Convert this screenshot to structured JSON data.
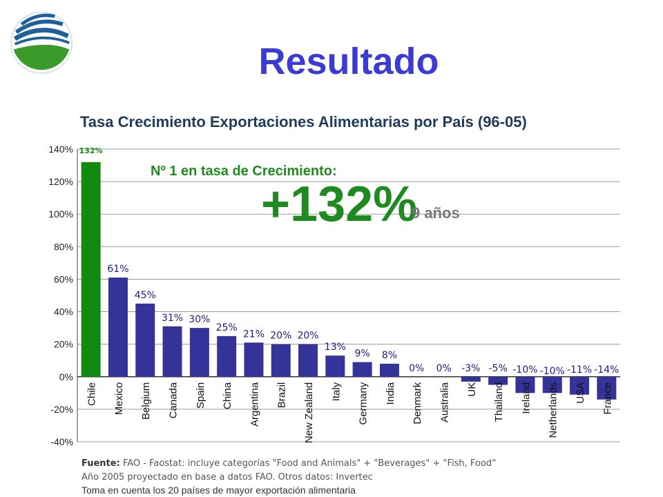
{
  "header": {
    "title": "Resultado",
    "subtitle": "Tasa Crecimiento Exportaciones Alimentarias por País (96-05)"
  },
  "annotations": {
    "rank_text": "Nº 1 en tasa de Crecimiento:",
    "big_value": "+132%",
    "period": "9 años"
  },
  "footer": {
    "source_label": "Fuente:",
    "source_text": "FAO - Faostat: incluye categorías \"Food and Animals\" + \"Beverages\" + \"Fish, Food“",
    "line2": "Año 2005 proyectado en base a datos FAO. Otros datos: Invertec",
    "line3": "Toma en cuenta los 20 países de mayor exportación alimentaria"
  },
  "colors": {
    "highlight": "#128a12",
    "bar": "#33339a",
    "title": "#3b3bd4",
    "annotation_green": "#1f8a1f",
    "period_gray": "#777777"
  },
  "chart_data": {
    "type": "bar",
    "categories": [
      "Chile",
      "Mexico",
      "Belgium",
      "Canada",
      "Spain",
      "China",
      "Argentina",
      "Brazil",
      "New Zealand",
      "Italy",
      "Germany",
      "India",
      "Denmark",
      "Australia",
      "UK",
      "Thailand",
      "Ireland",
      "Netherlands",
      "USA",
      "France"
    ],
    "values": [
      132,
      61,
      45,
      31,
      30,
      25,
      21,
      20,
      20,
      13,
      9,
      8,
      0,
      0,
      -3,
      -5,
      -10,
      -10,
      -11,
      -14
    ],
    "labels": [
      "132%",
      "61%",
      "45%",
      "31%",
      "30%",
      "25%",
      "21%",
      "20%",
      "20%",
      "13%",
      "9%",
      "8%",
      "0%",
      "0%",
      "-3%",
      "-5%",
      "-10%",
      "-10%",
      "-11%",
      "-14%"
    ],
    "yticks": [
      "-40%",
      "-20%",
      "0%",
      "20%",
      "40%",
      "60%",
      "80%",
      "100%",
      "120%",
      "140%"
    ],
    "ylim": [
      -40,
      140
    ],
    "grid": true,
    "title": "Tasa Crecimiento Exportaciones Alimentarias por País (96-05)"
  }
}
